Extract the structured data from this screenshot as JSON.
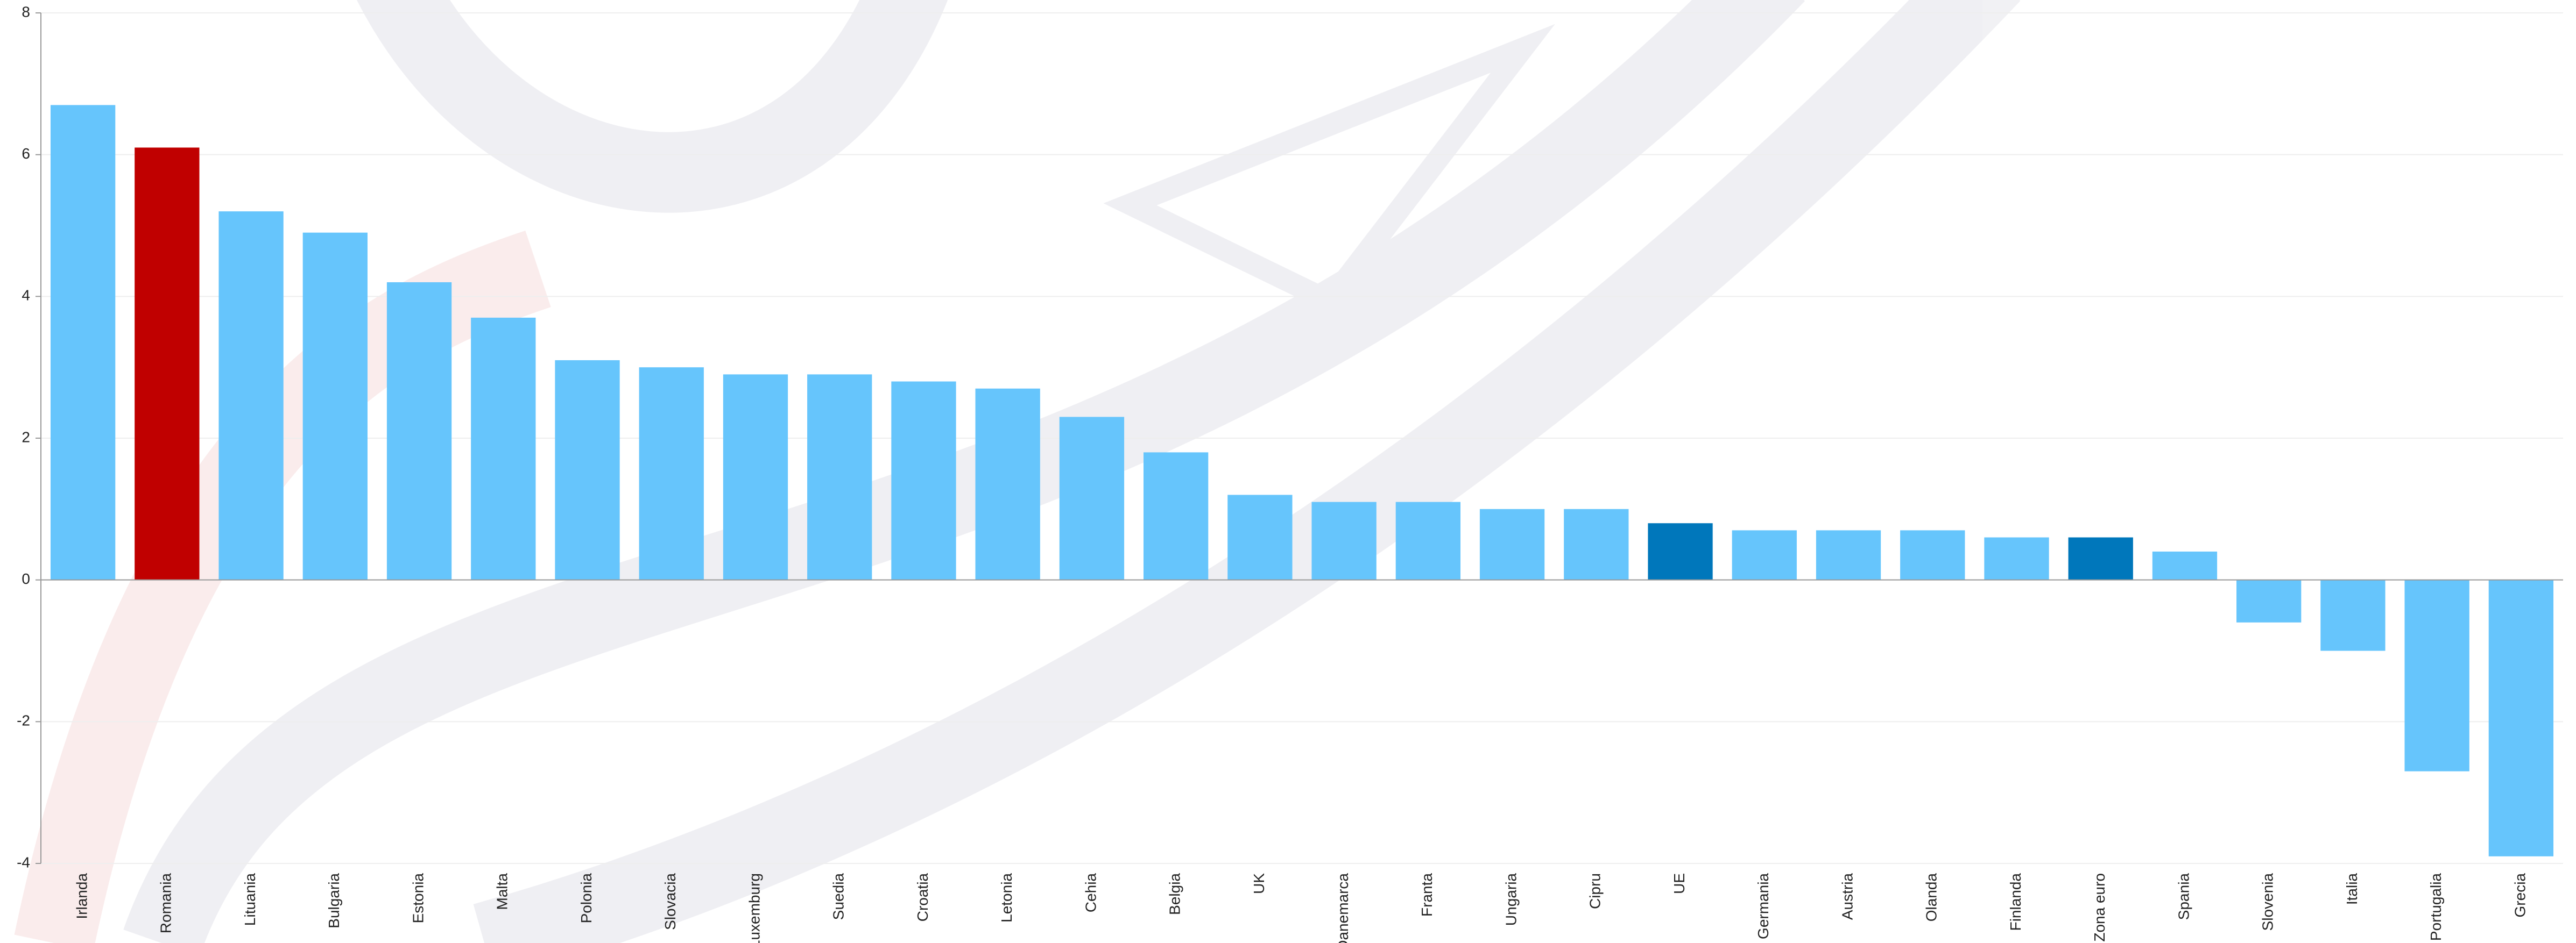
{
  "chart_data": {
    "type": "bar",
    "categories": [
      "Irlanda",
      "Romania",
      "Lituania",
      "Bulgaria",
      "Estonia",
      "Malta",
      "Polonia",
      "Slovacia",
      "Luxemburg",
      "Suedia",
      "Croatia",
      "Letonia",
      "Cehia",
      "Belgia",
      "UK",
      "Danemarca",
      "Franta",
      "Ungaria",
      "Cipru",
      "UE",
      "Germania",
      "Austria",
      "Olanda",
      "Finlanda",
      "Zona euro",
      "Spania",
      "Slovenia",
      "Italia",
      "Portugalia",
      "Grecia"
    ],
    "values": [
      6.7,
      6.1,
      5.2,
      4.9,
      4.2,
      3.7,
      3.1,
      3.0,
      2.9,
      2.9,
      2.8,
      2.7,
      2.3,
      1.8,
      1.2,
      1.1,
      1.1,
      1.0,
      1.0,
      0.8,
      0.7,
      0.7,
      0.7,
      0.6,
      0.6,
      0.4,
      -0.6,
      -1.0,
      -2.7,
      -3.9
    ],
    "colors": [
      "#66c5fc",
      "#c00000",
      "#66c5fc",
      "#66c5fc",
      "#66c5fc",
      "#66c5fc",
      "#66c5fc",
      "#66c5fc",
      "#66c5fc",
      "#66c5fc",
      "#66c5fc",
      "#66c5fc",
      "#66c5fc",
      "#66c5fc",
      "#66c5fc",
      "#66c5fc",
      "#66c5fc",
      "#66c5fc",
      "#66c5fc",
      "#0077bb",
      "#66c5fc",
      "#66c5fc",
      "#66c5fc",
      "#66c5fc",
      "#0077bb",
      "#66c5fc",
      "#66c5fc",
      "#66c5fc",
      "#66c5fc",
      "#66c5fc"
    ],
    "ylim": [
      -4,
      8
    ],
    "yticks": [
      -4,
      -2,
      0,
      2,
      4,
      6,
      8
    ],
    "grid": true
  }
}
